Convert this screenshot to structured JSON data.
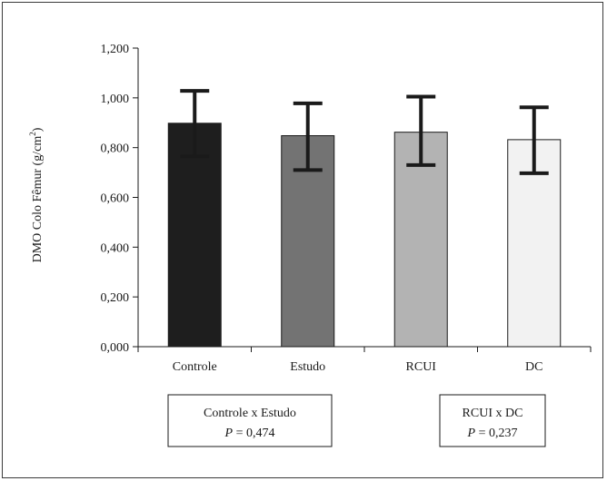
{
  "chart_data": {
    "type": "bar",
    "ylabel": "DMO Colo Fêmur (g/cm",
    "ylabel_sup": "2",
    "ylabel_end": ")",
    "ylim": [
      0,
      1.2
    ],
    "yticks": [
      "0,000",
      "0,200",
      "0,400",
      "0,600",
      "0,800",
      "1,000",
      "1,200"
    ],
    "categories": [
      "Controle",
      "Estudo",
      "RCUI",
      "DC"
    ],
    "values": [
      0.898,
      0.848,
      0.862,
      0.832
    ],
    "error_low": [
      0.765,
      0.71,
      0.73,
      0.697
    ],
    "error_high": [
      1.028,
      0.978,
      1.005,
      0.962
    ],
    "bar_colors": [
      "#1e1e1e",
      "#737373",
      "#b3b3b3",
      "#f2f2f2"
    ],
    "grid": false,
    "legend": "none"
  },
  "annotations": [
    {
      "line1": "Controle x Estudo",
      "p_label": "P",
      "p_value": "= 0,474"
    },
    {
      "line1": "RCUI x DC",
      "p_label": "P",
      "p_value": "= 0,237"
    }
  ]
}
